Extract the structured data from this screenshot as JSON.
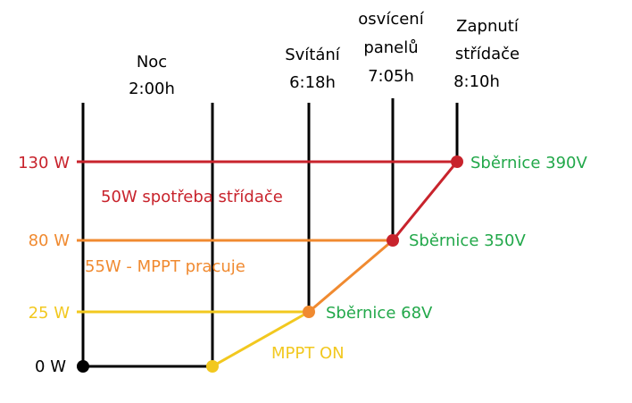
{
  "columns": [
    {
      "lines": [
        "Noc",
        "2:00h"
      ]
    },
    {
      "lines": [
        "Svítání",
        "6:18h"
      ]
    },
    {
      "lines": [
        "osvícení",
        "panelů",
        "7:05h"
      ]
    },
    {
      "lines": [
        "Zapnutí",
        "střídače",
        "8:10h"
      ]
    }
  ],
  "levels": [
    "130 W",
    "80 W",
    "25 W",
    "0 W"
  ],
  "bus_labels": [
    "Sběrnice 390V",
    "Sběrnice 350V",
    "Sběrnice 68V"
  ],
  "annotations": [
    "50W spotřeba střídače",
    "55W - MPPT pracuje",
    "MPPT ON"
  ]
}
